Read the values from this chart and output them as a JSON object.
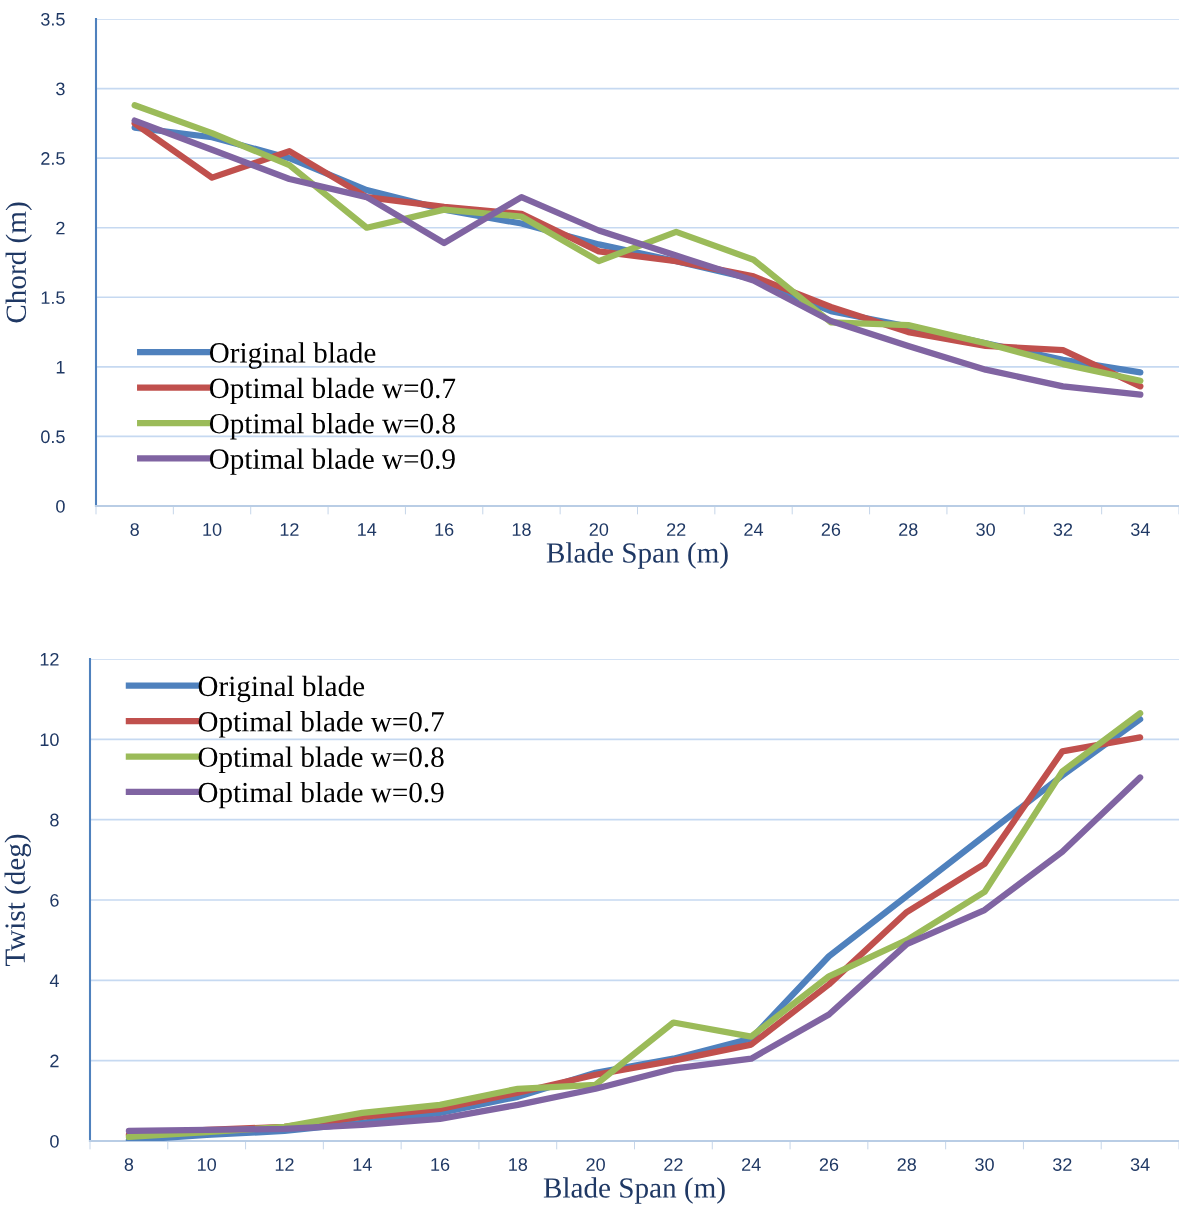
{
  "chart_data": [
    {
      "type": "line",
      "xlabel": "Blade Span (m)",
      "ylabel": "Chord (m)",
      "categories": [
        "8",
        "10",
        "12",
        "14",
        "16",
        "18",
        "20",
        "22",
        "24",
        "26",
        "28",
        "30",
        "32",
        "34"
      ],
      "series": [
        {
          "name": "Original blade",
          "color": "#4f81bd",
          "values": [
            2.72,
            2.65,
            2.5,
            2.27,
            2.13,
            2.03,
            1.88,
            1.76,
            1.63,
            1.4,
            1.29,
            1.17,
            1.05,
            0.96
          ]
        },
        {
          "name": "Optimal blade w=0.7",
          "color": "#c0504d",
          "values": [
            2.75,
            2.36,
            2.55,
            2.22,
            2.15,
            2.1,
            1.83,
            1.76,
            1.65,
            1.43,
            1.25,
            1.15,
            1.12,
            0.86
          ]
        },
        {
          "name": "Optimal blade w=0.8",
          "color": "#9bbb59",
          "values": [
            2.88,
            2.68,
            2.45,
            2.0,
            2.13,
            2.08,
            1.76,
            1.97,
            1.77,
            1.32,
            1.3,
            1.17,
            1.02,
            0.9
          ]
        },
        {
          "name": "Optimal blade w=0.9",
          "color": "#8064a2",
          "values": [
            2.77,
            2.56,
            2.35,
            2.22,
            1.89,
            2.22,
            1.98,
            1.8,
            1.62,
            1.33,
            1.15,
            0.98,
            0.86,
            0.8
          ]
        }
      ],
      "ylim": [
        0,
        3.5
      ],
      "yticks": [
        0,
        0.5,
        1,
        1.5,
        2,
        2.5,
        3,
        3.5
      ],
      "grid": "y",
      "legend": "bottom left",
      "marker": "none",
      "line_style": "solid"
    },
    {
      "type": "line",
      "xlabel": "Blade Span (m)",
      "ylabel": "Twist (deg)",
      "categories": [
        "8",
        "10",
        "12",
        "14",
        "16",
        "18",
        "20",
        "22",
        "24",
        "26",
        "28",
        "30",
        "32",
        "34"
      ],
      "series": [
        {
          "name": "Original blade",
          "color": "#4f81bd",
          "values": [
            0.02,
            0.15,
            0.25,
            0.45,
            0.7,
            1.1,
            1.7,
            2.05,
            2.55,
            4.6,
            6.1,
            7.6,
            9.1,
            10.5
          ]
        },
        {
          "name": "Optimal blade w=0.7",
          "color": "#c0504d",
          "values": [
            0.15,
            0.28,
            0.35,
            0.6,
            0.8,
            1.2,
            1.65,
            2.0,
            2.4,
            3.9,
            5.7,
            6.9,
            9.7,
            10.05
          ]
        },
        {
          "name": "Optimal blade w=0.8",
          "color": "#9bbb59",
          "values": [
            0.1,
            0.22,
            0.35,
            0.7,
            0.9,
            1.3,
            1.4,
            2.95,
            2.6,
            4.1,
            5.0,
            6.2,
            9.2,
            10.65
          ]
        },
        {
          "name": "Optimal blade w=0.9",
          "color": "#8064a2",
          "values": [
            0.25,
            0.28,
            0.3,
            0.4,
            0.55,
            0.9,
            1.3,
            1.8,
            2.05,
            3.15,
            4.9,
            5.75,
            7.2,
            9.05
          ]
        }
      ],
      "ylim": [
        0,
        12
      ],
      "yticks": [
        0,
        2,
        4,
        6,
        8,
        10,
        12
      ],
      "grid": "y",
      "legend": "top left",
      "marker": "none",
      "line_style": "solid"
    }
  ]
}
